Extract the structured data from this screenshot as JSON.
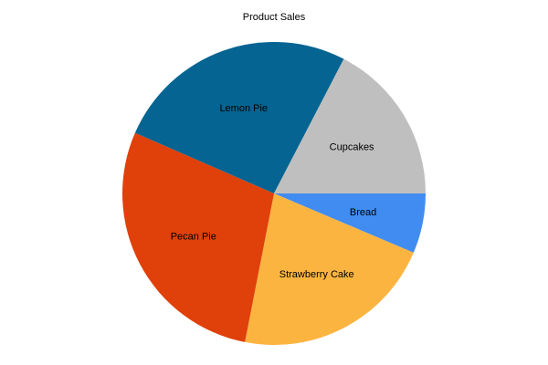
{
  "chart_data": {
    "type": "pie",
    "title": "Product Sales",
    "start_angle_deg": 0,
    "direction": "clockwise",
    "slices": [
      {
        "label": "Bread",
        "value": 6.4,
        "color": "#418cf0"
      },
      {
        "label": "Strawberry Cake",
        "value": 21.7,
        "color": "#fcb441"
      },
      {
        "label": "Pecan Pie",
        "value": 28.5,
        "color": "#e0400a"
      },
      {
        "label": "Lemon Pie",
        "value": 26.1,
        "color": "#056492"
      },
      {
        "label": "Cupcakes",
        "value": 17.4,
        "color": "#bfbfbf"
      }
    ]
  }
}
